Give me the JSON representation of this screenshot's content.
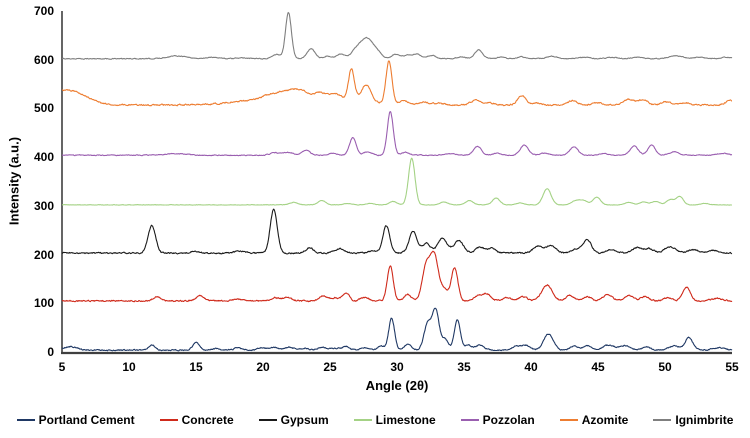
{
  "figure": {
    "background": "#ffffff"
  },
  "chart_data": {
    "type": "line",
    "title": "",
    "xlabel": "Angle (2θ)",
    "ylabel": "Intensity (a.u.)",
    "x_range": [
      5,
      55
    ],
    "y_range": [
      0,
      700
    ],
    "x_ticks": [
      5,
      10,
      15,
      20,
      25,
      30,
      35,
      40,
      45,
      50,
      55
    ],
    "y_ticks": [
      0,
      100,
      200,
      300,
      400,
      500,
      600,
      700
    ],
    "grid": false,
    "legend_position": "bottom",
    "axis_color": "#3f3f3f",
    "label_color": "#000000",
    "note": "Stacked XRD patterns; each series offset vertically by 100 a.u.; peaks listed as [angle_2theta, height_above_baseline, width]",
    "series": [
      {
        "name": "Portland Cement",
        "slug": "portland-cement",
        "color": "#1f3864",
        "offset": 0,
        "base": 4,
        "noise": 1.3,
        "peaks": [
          [
            5.6,
            7,
            0.5
          ],
          [
            11.7,
            10,
            0.25
          ],
          [
            15.0,
            15,
            0.25
          ],
          [
            16.5,
            3,
            0.3
          ],
          [
            18.1,
            4,
            0.3
          ],
          [
            19.9,
            5,
            0.3
          ],
          [
            20.8,
            6,
            0.3
          ],
          [
            22.0,
            6,
            0.3
          ],
          [
            23.1,
            4,
            0.3
          ],
          [
            24.4,
            6,
            0.3
          ],
          [
            25.4,
            4,
            0.3
          ],
          [
            26.2,
            8,
            0.25
          ],
          [
            27.6,
            5,
            0.3
          ],
          [
            28.8,
            8,
            0.25
          ],
          [
            29.6,
            65,
            0.22
          ],
          [
            30.8,
            12,
            0.25
          ],
          [
            32.3,
            55,
            0.28
          ],
          [
            32.9,
            80,
            0.25
          ],
          [
            33.6,
            22,
            0.25
          ],
          [
            34.5,
            62,
            0.22
          ],
          [
            35.3,
            10,
            0.3
          ],
          [
            36.2,
            10,
            0.3
          ],
          [
            38.9,
            8,
            0.3
          ],
          [
            39.6,
            10,
            0.3
          ],
          [
            41.3,
            33,
            0.35
          ],
          [
            43.2,
            8,
            0.3
          ],
          [
            44.2,
            9,
            0.3
          ],
          [
            45.8,
            10,
            0.4
          ],
          [
            47.0,
            9,
            0.4
          ],
          [
            48.6,
            7,
            0.3
          ],
          [
            50.7,
            9,
            0.4
          ],
          [
            51.8,
            26,
            0.28
          ],
          [
            54.0,
            5,
            0.4
          ]
        ]
      },
      {
        "name": "Concrete",
        "slug": "concrete",
        "color": "#cf2a1b",
        "offset": 100,
        "base": 5,
        "noise": 1.5,
        "peaks": [
          [
            12.1,
            8,
            0.3
          ],
          [
            15.3,
            10,
            0.3
          ],
          [
            18.0,
            4,
            0.3
          ],
          [
            20.9,
            6,
            0.3
          ],
          [
            21.8,
            8,
            0.3
          ],
          [
            24.5,
            10,
            0.3
          ],
          [
            25.4,
            6,
            0.3
          ],
          [
            26.2,
            16,
            0.25
          ],
          [
            27.6,
            8,
            0.3
          ],
          [
            29.5,
            72,
            0.22
          ],
          [
            30.8,
            14,
            0.25
          ],
          [
            32.2,
            75,
            0.3
          ],
          [
            32.8,
            88,
            0.28
          ],
          [
            33.5,
            25,
            0.3
          ],
          [
            34.3,
            68,
            0.24
          ],
          [
            36.0,
            10,
            0.3
          ],
          [
            36.7,
            14,
            0.3
          ],
          [
            38.2,
            6,
            0.3
          ],
          [
            39.4,
            9,
            0.3
          ],
          [
            41.2,
            32,
            0.4
          ],
          [
            42.9,
            11,
            0.3
          ],
          [
            44.2,
            9,
            0.3
          ],
          [
            45.7,
            13,
            0.35
          ],
          [
            47.3,
            11,
            0.35
          ],
          [
            48.5,
            9,
            0.3
          ],
          [
            50.2,
            7,
            0.3
          ],
          [
            51.6,
            28,
            0.28
          ],
          [
            53.9,
            5,
            0.4
          ]
        ]
      },
      {
        "name": "Gypsum",
        "slug": "gypsum",
        "color": "#1a1a1a",
        "offset": 200,
        "base": 3,
        "noise": 1.5,
        "peaks": [
          [
            11.7,
            56,
            0.28
          ],
          [
            14.9,
            4,
            0.3
          ],
          [
            18.2,
            5,
            0.35
          ],
          [
            20.8,
            90,
            0.26
          ],
          [
            23.5,
            11,
            0.3
          ],
          [
            25.7,
            9,
            0.35
          ],
          [
            28.2,
            5,
            0.3
          ],
          [
            29.2,
            56,
            0.26
          ],
          [
            31.2,
            44,
            0.3
          ],
          [
            32.2,
            20,
            0.3
          ],
          [
            33.4,
            30,
            0.35
          ],
          [
            34.6,
            26,
            0.35
          ],
          [
            36.2,
            12,
            0.35
          ],
          [
            37.1,
            9,
            0.3
          ],
          [
            40.5,
            14,
            0.35
          ],
          [
            41.5,
            16,
            0.35
          ],
          [
            43.4,
            9,
            0.35
          ],
          [
            44.2,
            28,
            0.3
          ],
          [
            46.0,
            7,
            0.35
          ],
          [
            47.9,
            11,
            0.35
          ],
          [
            48.8,
            9,
            0.35
          ],
          [
            50.4,
            13,
            0.4
          ],
          [
            52.1,
            7,
            0.4
          ],
          [
            53.6,
            5,
            0.4
          ]
        ]
      },
      {
        "name": "Limestone",
        "slug": "limestone",
        "color": "#a4d285",
        "offset": 300,
        "base": 2,
        "noise": 0.5,
        "peaks": [
          [
            22.3,
            5,
            0.3
          ],
          [
            24.4,
            9,
            0.28
          ],
          [
            26.3,
            3,
            0.3
          ],
          [
            28.0,
            3,
            0.3
          ],
          [
            29.7,
            7,
            0.28
          ],
          [
            31.1,
            96,
            0.24
          ],
          [
            33.5,
            6,
            0.3
          ],
          [
            35.4,
            9,
            0.28
          ],
          [
            37.4,
            14,
            0.28
          ],
          [
            39.2,
            4,
            0.3
          ],
          [
            41.2,
            33,
            0.3
          ],
          [
            43.3,
            8,
            0.3
          ],
          [
            43.9,
            9,
            0.3
          ],
          [
            44.9,
            16,
            0.28
          ],
          [
            47.3,
            5,
            0.3
          ],
          [
            48.4,
            6,
            0.3
          ],
          [
            49.3,
            7,
            0.3
          ],
          [
            50.4,
            11,
            0.28
          ],
          [
            51.1,
            17,
            0.26
          ],
          [
            53.0,
            3,
            0.3
          ]
        ]
      },
      {
        "name": "Pozzolan",
        "slug": "pozzolan",
        "color": "#9a5fb0",
        "offset": 400,
        "base": 4,
        "noise": 0.9,
        "peaks": [
          [
            13.5,
            3,
            0.8
          ],
          [
            20.9,
            5,
            0.35
          ],
          [
            21.9,
            6,
            0.35
          ],
          [
            23.2,
            10,
            0.3
          ],
          [
            25.2,
            4,
            0.3
          ],
          [
            26.7,
            36,
            0.25
          ],
          [
            27.8,
            7,
            0.3
          ],
          [
            29.5,
            90,
            0.22
          ],
          [
            30.6,
            6,
            0.3
          ],
          [
            34.0,
            3,
            0.4
          ],
          [
            36.0,
            18,
            0.3
          ],
          [
            37.5,
            4,
            0.3
          ],
          [
            39.5,
            21,
            0.3
          ],
          [
            41.0,
            4,
            0.3
          ],
          [
            43.2,
            17,
            0.3
          ],
          [
            45.4,
            4,
            0.3
          ],
          [
            47.7,
            19,
            0.3
          ],
          [
            49.0,
            21,
            0.28
          ],
          [
            50.7,
            7,
            0.35
          ],
          [
            54.3,
            4,
            0.4
          ]
        ]
      },
      {
        "name": "Azomite",
        "slug": "azomite",
        "color": "#ed7d31",
        "offset": 500,
        "base": 7,
        "noise": 1.5,
        "peaks": [
          [
            4.2,
            22,
            1.6
          ],
          [
            6.0,
            16,
            1.1
          ],
          [
            23.0,
            22,
            3.2
          ],
          [
            20.5,
            6,
            0.4
          ],
          [
            21.4,
            8,
            0.35
          ],
          [
            22.2,
            10,
            0.35
          ],
          [
            22.9,
            8,
            0.35
          ],
          [
            24.3,
            6,
            0.35
          ],
          [
            25.4,
            8,
            0.3
          ],
          [
            26.6,
            62,
            0.22
          ],
          [
            27.7,
            34,
            0.35
          ],
          [
            29.4,
            88,
            0.22
          ],
          [
            30.5,
            8,
            0.3
          ],
          [
            32.0,
            6,
            0.35
          ],
          [
            33.1,
            4,
            0.35
          ],
          [
            35.9,
            10,
            0.4
          ],
          [
            37.0,
            4,
            0.3
          ],
          [
            39.3,
            20,
            0.3
          ],
          [
            40.4,
            4,
            0.3
          ],
          [
            43.1,
            9,
            0.35
          ],
          [
            45.0,
            5,
            0.35
          ],
          [
            47.3,
            12,
            0.4
          ],
          [
            48.4,
            11,
            0.35
          ],
          [
            50.1,
            7,
            0.35
          ],
          [
            51.5,
            4,
            0.35
          ],
          [
            54.8,
            9,
            0.3
          ]
        ]
      },
      {
        "name": "Ignimbrite",
        "slug": "ignimbrite",
        "color": "#7f7f7f",
        "offset": 600,
        "base": 2,
        "noise": 0.9,
        "peaks": [
          [
            13.6,
            6,
            0.7
          ],
          [
            16.3,
            3,
            0.5
          ],
          [
            18.5,
            2,
            0.4
          ],
          [
            21.0,
            9,
            0.3
          ],
          [
            21.9,
            95,
            0.22
          ],
          [
            23.6,
            20,
            0.3
          ],
          [
            24.8,
            5,
            0.3
          ],
          [
            25.8,
            9,
            0.3
          ],
          [
            27.0,
            18,
            0.4
          ],
          [
            27.8,
            40,
            0.45
          ],
          [
            28.6,
            10,
            0.3
          ],
          [
            29.9,
            9,
            0.3
          ],
          [
            30.8,
            7,
            0.3
          ],
          [
            31.5,
            9,
            0.3
          ],
          [
            32.6,
            7,
            0.3
          ],
          [
            34.8,
            4,
            0.3
          ],
          [
            36.1,
            18,
            0.3
          ],
          [
            37.8,
            3,
            0.3
          ],
          [
            39.3,
            4,
            0.3
          ],
          [
            41.6,
            5,
            0.4
          ],
          [
            44.0,
            3,
            0.4
          ],
          [
            46.0,
            3,
            0.4
          ],
          [
            48.0,
            3,
            0.4
          ],
          [
            50.8,
            6,
            0.5
          ],
          [
            52.5,
            3,
            0.4
          ],
          [
            54.5,
            3,
            0.4
          ]
        ]
      }
    ]
  }
}
